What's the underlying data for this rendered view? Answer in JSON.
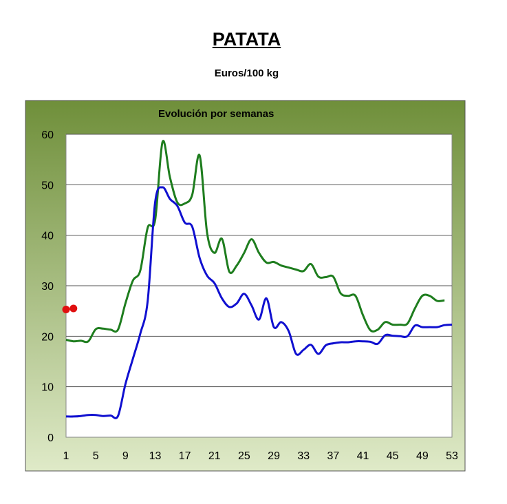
{
  "header": {
    "title": "PATATA",
    "subtitle": "Euros/100 kg"
  },
  "colors": {
    "series_green": "#1e7d1e",
    "series_blue": "#1010d0",
    "markers_red": "#e01010",
    "frame_top": "#6f8f3a",
    "frame_bottom": "#dfeac8"
  },
  "chart_data": {
    "type": "line",
    "title": "Evolución por semanas",
    "xlabel": "",
    "ylabel": "",
    "xlim": [
      1,
      53
    ],
    "ylim": [
      0,
      60
    ],
    "x_ticks": [
      1,
      5,
      9,
      13,
      17,
      21,
      25,
      29,
      33,
      37,
      41,
      45,
      49,
      53
    ],
    "y_ticks": [
      0,
      10,
      20,
      30,
      40,
      50,
      60
    ],
    "grid": "horizontal",
    "legend": "none",
    "series": [
      {
        "color": "#1e7d1e",
        "x": [
          1,
          2,
          3,
          4,
          5,
          6,
          7,
          8,
          9,
          10,
          11,
          12,
          13,
          14,
          15,
          16,
          17,
          18,
          19,
          20,
          21,
          22,
          23,
          24,
          25,
          26,
          27,
          28,
          29,
          30,
          31,
          32,
          33,
          34,
          35,
          36,
          37,
          38,
          39,
          40,
          41,
          42,
          43,
          44,
          45,
          46,
          47,
          48,
          49,
          50,
          51,
          52
        ],
        "values": [
          19.3,
          19.0,
          19.1,
          19.0,
          21.4,
          21.5,
          21.3,
          21.3,
          26.5,
          31.0,
          33.0,
          41.5,
          43.0,
          58.5,
          51.5,
          46.5,
          46.3,
          48.0,
          55.8,
          40.5,
          36.5,
          39.3,
          32.8,
          34.0,
          36.5,
          39.2,
          36.5,
          34.6,
          34.7,
          34.0,
          33.6,
          33.2,
          32.9,
          34.3,
          31.8,
          31.7,
          31.8,
          28.5,
          28.0,
          28.0,
          24.2,
          21.2,
          21.3,
          22.8,
          22.3,
          22.3,
          22.5,
          25.5,
          28.0,
          28.0,
          27.0,
          27.1
        ]
      },
      {
        "color": "#1010d0",
        "x": [
          1,
          2,
          3,
          4,
          5,
          6,
          7,
          8,
          9,
          10,
          11,
          12,
          13,
          14,
          15,
          16,
          17,
          18,
          19,
          20,
          21,
          22,
          23,
          24,
          25,
          26,
          27,
          28,
          29,
          30,
          31,
          32,
          33,
          34,
          35,
          36,
          37,
          38,
          39,
          40,
          41,
          42,
          43,
          44,
          45,
          46,
          47,
          48,
          49,
          50,
          51,
          52,
          53
        ],
        "values": [
          4.1,
          4.1,
          4.2,
          4.4,
          4.4,
          4.2,
          4.3,
          4.2,
          10.5,
          15.5,
          20.5,
          27.0,
          46.5,
          49.5,
          47.2,
          45.8,
          42.5,
          41.7,
          35.5,
          32.0,
          30.5,
          27.5,
          25.8,
          26.5,
          28.4,
          26.1,
          23.3,
          27.5,
          21.8,
          22.8,
          21.0,
          16.5,
          17.3,
          18.3,
          16.5,
          18.2,
          18.6,
          18.8,
          18.8,
          19.0,
          19.0,
          18.9,
          18.5,
          20.2,
          20.1,
          20.0,
          20.0,
          22.1,
          21.8,
          21.8,
          21.8,
          22.2,
          22.3
        ]
      },
      {
        "color": "#e01010",
        "marker_only": true,
        "x": [
          1,
          2
        ],
        "values": [
          25.3,
          25.5
        ]
      }
    ]
  }
}
